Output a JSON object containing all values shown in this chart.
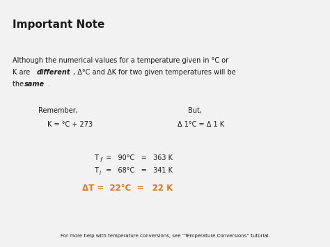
{
  "title": "Important Note",
  "bg_color": "#f2f2f2",
  "text_color": "#1a1a1a",
  "orange_color": "#e07820",
  "body_line1": "Although the numerical values for a temperature given in °C or",
  "body_line2a": "K are ",
  "body_line2b": "different",
  "body_line2c": ", Δ°C and ΔK for two given temperatures will be",
  "body_line3a": "the ",
  "body_line3b": "same",
  "body_line3c": ".",
  "remember_label": "Remember,",
  "but_label": "But,",
  "formula_left": "K = °C + 273",
  "formula_right": "Δ 1°C = Δ 1 K",
  "tf_vals": "=   90°C   =   363 K",
  "ti_vals": "=   68°C   =   341 K",
  "delta_label": "ΔT =  22°C  =   22 K",
  "footer": "For more help with temperature conversions, see “Temperature Conversions” tutorial.",
  "title_fs": 11,
  "body_fs": 7.0,
  "formula_fs": 7.0,
  "delta_fs": 8.5,
  "footer_fs": 5.0
}
